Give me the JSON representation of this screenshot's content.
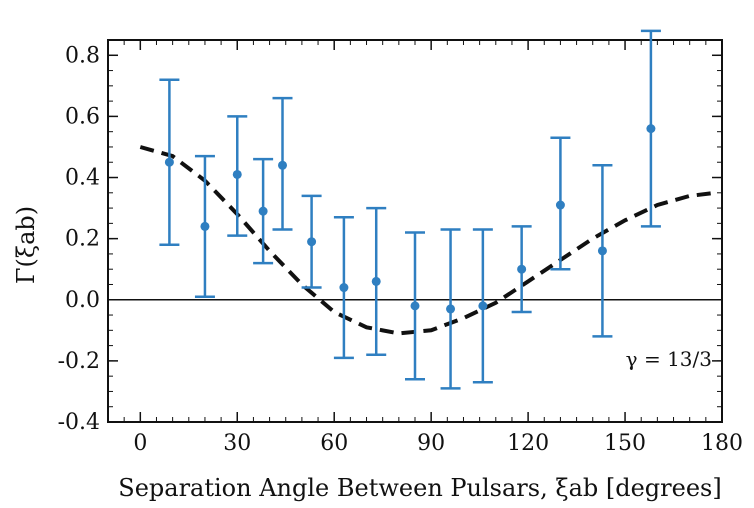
{
  "chart_data": {
    "type": "scatter",
    "xlabel": "Separation Angle Between Pulsars, ξab [degrees]",
    "ylabel": "Γ(ξab)",
    "xlim": [
      -10,
      180
    ],
    "ylim": [
      -0.4,
      0.85
    ],
    "xticks": [
      0,
      30,
      60,
      90,
      120,
      150,
      180
    ],
    "yticks": [
      -0.4,
      -0.2,
      0.0,
      0.2,
      0.4,
      0.6,
      0.8
    ],
    "ytick_labels": [
      "-0.4",
      "-0.2",
      "0.0",
      "0.2",
      "0.4",
      "0.6",
      "0.8"
    ],
    "annotation": "γ = 13/3",
    "grid": false,
    "colors": {
      "points": "#2f7fc1",
      "curve": "#111111",
      "zero_line": "#111111"
    },
    "series": [
      {
        "kind": "errorbar",
        "x": [
          9,
          20,
          30,
          38,
          44,
          53,
          63,
          73,
          85,
          96,
          106,
          118,
          130,
          143,
          158
        ],
        "y": [
          0.45,
          0.24,
          0.41,
          0.29,
          0.44,
          0.19,
          0.04,
          0.06,
          -0.02,
          -0.03,
          -0.02,
          0.1,
          0.31,
          0.16,
          0.56
        ],
        "yerr_low": [
          0.18,
          0.01,
          0.21,
          0.12,
          0.23,
          0.04,
          -0.19,
          -0.18,
          -0.26,
          -0.29,
          -0.27,
          -0.04,
          0.1,
          -0.12,
          0.24
        ],
        "yerr_high": [
          0.72,
          0.47,
          0.6,
          0.46,
          0.66,
          0.34,
          0.27,
          0.3,
          0.22,
          0.23,
          0.23,
          0.24,
          0.53,
          0.44,
          0.88
        ]
      },
      {
        "kind": "curve",
        "style": "dashed",
        "x": [
          0,
          10,
          20,
          30,
          40,
          50,
          60,
          70,
          80,
          90,
          100,
          110,
          120,
          130,
          140,
          150,
          160,
          170,
          178
        ],
        "y": [
          0.5,
          0.47,
          0.39,
          0.28,
          0.16,
          0.05,
          -0.04,
          -0.09,
          -0.11,
          -0.1,
          -0.06,
          -0.01,
          0.06,
          0.13,
          0.2,
          0.26,
          0.31,
          0.34,
          0.35
        ]
      }
    ]
  }
}
